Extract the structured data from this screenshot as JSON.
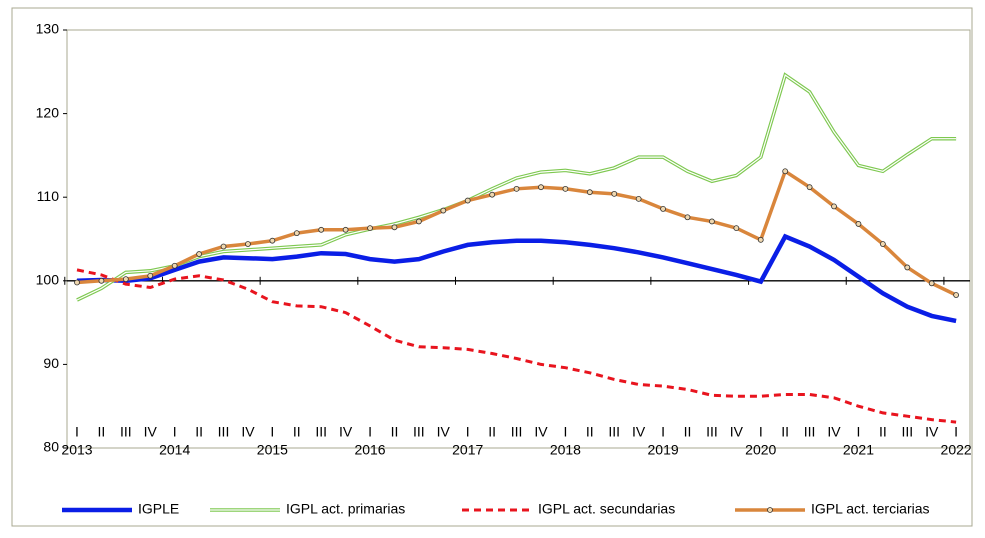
{
  "chart_data": {
    "type": "line",
    "categories": [
      "I",
      "II",
      "III",
      "IV",
      "I",
      "II",
      "III",
      "IV",
      "I",
      "II",
      "III",
      "IV",
      "I",
      "II",
      "III",
      "IV",
      "I",
      "II",
      "III",
      "IV",
      "I",
      "II",
      "III",
      "IV",
      "I",
      "II",
      "III",
      "IV",
      "I",
      "II",
      "III",
      "IV",
      "I",
      "II",
      "III",
      "IV",
      "I"
    ],
    "year_labels": [
      "2013",
      "2014",
      "2015",
      "2016",
      "2017",
      "2018",
      "2019",
      "2020",
      "2021",
      "2022"
    ],
    "ylim": [
      80,
      130
    ],
    "yticks": [
      80,
      90,
      100,
      110,
      120,
      130
    ],
    "reference_line": 100,
    "series": [
      {
        "name": "IGPLE",
        "color": "#0a1ee6",
        "values": [
          100,
          100.1,
          100,
          100.3,
          101.3,
          102.3,
          102.8,
          102.7,
          102.6,
          102.9,
          103.3,
          103.2,
          102.6,
          102.3,
          102.6,
          103.5,
          104.3,
          104.6,
          104.8,
          104.8,
          104.6,
          104.3,
          103.9,
          103.4,
          102.8,
          102.1,
          101.4,
          100.7,
          99.9,
          105.3,
          104.1,
          102.5,
          100.5,
          98.5,
          96.9,
          95.8,
          95.2
        ]
      },
      {
        "name": "IGPL act. primarias",
        "color": "#7ec850",
        "values": [
          97.7,
          99.1,
          101,
          101.2,
          101.8,
          102.9,
          103.5,
          103.7,
          103.9,
          104.1,
          104.3,
          105.5,
          106.2,
          106.8,
          107.6,
          108.5,
          109.6,
          111,
          112.3,
          113,
          113.2,
          112.8,
          113.5,
          114.8,
          114.8,
          113.1,
          111.9,
          112.6,
          114.8,
          124.6,
          122.6,
          117.8,
          113.8,
          113.1,
          115.1,
          117,
          117
        ]
      },
      {
        "name": "IGPL act. secundarias",
        "color": "#e8141e",
        "values": [
          101.3,
          100.7,
          99.6,
          99.2,
          100.2,
          100.6,
          100.1,
          99,
          97.5,
          97,
          96.9,
          96.2,
          94.6,
          92.9,
          92.1,
          92,
          91.8,
          91.3,
          90.7,
          90,
          89.6,
          89,
          88.2,
          87.6,
          87.4,
          87,
          86.3,
          86.2,
          86.2,
          86.4,
          86.4,
          86,
          85,
          84.2,
          83.8,
          83.4,
          83.1
        ]
      },
      {
        "name": "IGPL act. terciarias",
        "color": "#d9863c",
        "values": [
          99.8,
          100,
          100.2,
          100.6,
          101.8,
          103.2,
          104.1,
          104.4,
          104.8,
          105.7,
          106.1,
          106.1,
          106.3,
          106.4,
          107.1,
          108.4,
          109.6,
          110.3,
          111,
          111.2,
          111,
          110.6,
          110.4,
          109.8,
          108.6,
          107.6,
          107.1,
          106.3,
          104.9,
          113.1,
          111.2,
          108.9,
          106.8,
          104.4,
          101.6,
          99.7,
          98.3
        ]
      }
    ]
  }
}
